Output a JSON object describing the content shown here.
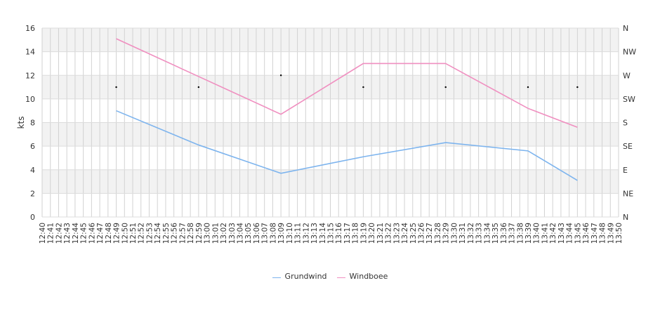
{
  "chart_data": {
    "type": "line",
    "ylabel": "kts",
    "ylim": [
      0,
      16
    ],
    "y_ticks": [
      "0",
      "2",
      "4",
      "6",
      "8",
      "10",
      "12",
      "14",
      "16"
    ],
    "right_axis_ticks": [
      "N",
      "NE",
      "E",
      "SE",
      "S",
      "SW",
      "W",
      "NW",
      "N"
    ],
    "x_ticks": [
      "12:40",
      "12:41",
      "12:42",
      "12:43",
      "12:44",
      "12:45",
      "12:46",
      "12:47",
      "12:48",
      "12:49",
      "12:50",
      "12:51",
      "12:52",
      "12:53",
      "12:54",
      "12:55",
      "12:56",
      "12:57",
      "12:58",
      "12:59",
      "13:00",
      "13:01",
      "13:02",
      "13:03",
      "13:04",
      "13:05",
      "13:06",
      "13:07",
      "13:08",
      "13:09",
      "13:10",
      "13:11",
      "13:12",
      "13:13",
      "13:14",
      "13:15",
      "13:16",
      "13:17",
      "13:18",
      "13:19",
      "13:20",
      "13:21",
      "13:22",
      "13:23",
      "13:24",
      "13:25",
      "13:26",
      "13:27",
      "13:28",
      "13:29",
      "13:30",
      "13:31",
      "13:32",
      "13:33",
      "13:34",
      "13:35",
      "13:36",
      "13:37",
      "13:38",
      "13:39",
      "13:40",
      "13:41",
      "13:42",
      "13:43",
      "13:44",
      "13:45",
      "13:46",
      "13:47",
      "13:48",
      "13:49",
      "13:50"
    ],
    "x_points": [
      "12:49",
      "12:59",
      "13:09",
      "13:19",
      "13:29",
      "13:39",
      "13:45"
    ],
    "series": [
      {
        "name": "Grundwind",
        "color": "#7db4ee",
        "values": [
          9.0,
          6.1,
          3.7,
          5.1,
          6.3,
          5.6,
          3.1
        ]
      },
      {
        "name": "Windboee",
        "color": "#f08fc0",
        "values": [
          15.1,
          11.9,
          8.7,
          13.0,
          13.0,
          9.2,
          7.6
        ]
      }
    ],
    "direction_markers": {
      "x": [
        "12:49",
        "12:59",
        "13:09",
        "13:19",
        "13:29",
        "13:39",
        "13:45"
      ],
      "values": [
        11,
        11,
        12,
        11,
        11,
        11,
        11
      ]
    },
    "band_shading": true,
    "grid": true,
    "legend": "bottom-center"
  }
}
